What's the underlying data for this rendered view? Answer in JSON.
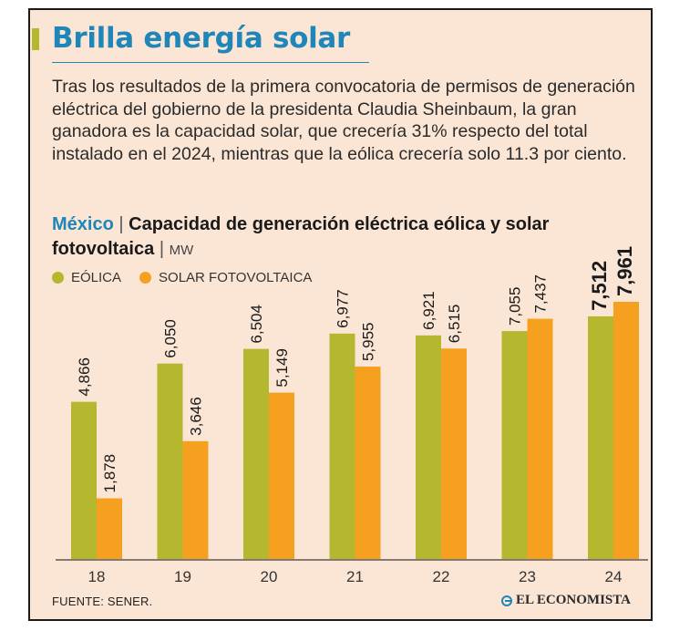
{
  "header": {
    "title": "Brilla energía solar",
    "intro": "Tras los resultados de la primera convocatoria de permisos de generación eléctrica del gobierno de la presidenta Claudia Sheinbaum, la gran ganadora es la capacidad solar, que crecería 31% respecto del total instalado en el 2024, mientras que la eólica crecería solo 11.3 por ciento."
  },
  "chart_data": {
    "type": "bar",
    "country": "México",
    "separator": "|",
    "title": "Capacidad de generación eléctrica eólica y solar fotovoltaica",
    "unit": "MW",
    "categories": [
      "18",
      "19",
      "20",
      "21",
      "22",
      "23",
      "24"
    ],
    "series": [
      {
        "name": "EÓLICA",
        "color": "#b5b82e",
        "values": [
          4866,
          6050,
          6504,
          6977,
          6921,
          7055,
          7512
        ],
        "labels": [
          "4,866",
          "6,050",
          "6,504",
          "6,977",
          "6,921",
          "7,055",
          "7,512"
        ]
      },
      {
        "name": "SOLAR FOTOVOLTAICA",
        "color": "#f5a11f",
        "values": [
          1878,
          3646,
          5149,
          5955,
          6515,
          7437,
          7961
        ],
        "labels": [
          "1,878",
          "3,646",
          "5,149",
          "5,955",
          "6,515",
          "7,437",
          "7,961"
        ]
      }
    ],
    "ylim": [
      0,
      8000
    ],
    "grid": false,
    "legend": "top-left",
    "highlight_last": true
  },
  "footer": {
    "source": "FUENTE: SENER.",
    "brand": "EL ECONOMISTA"
  }
}
